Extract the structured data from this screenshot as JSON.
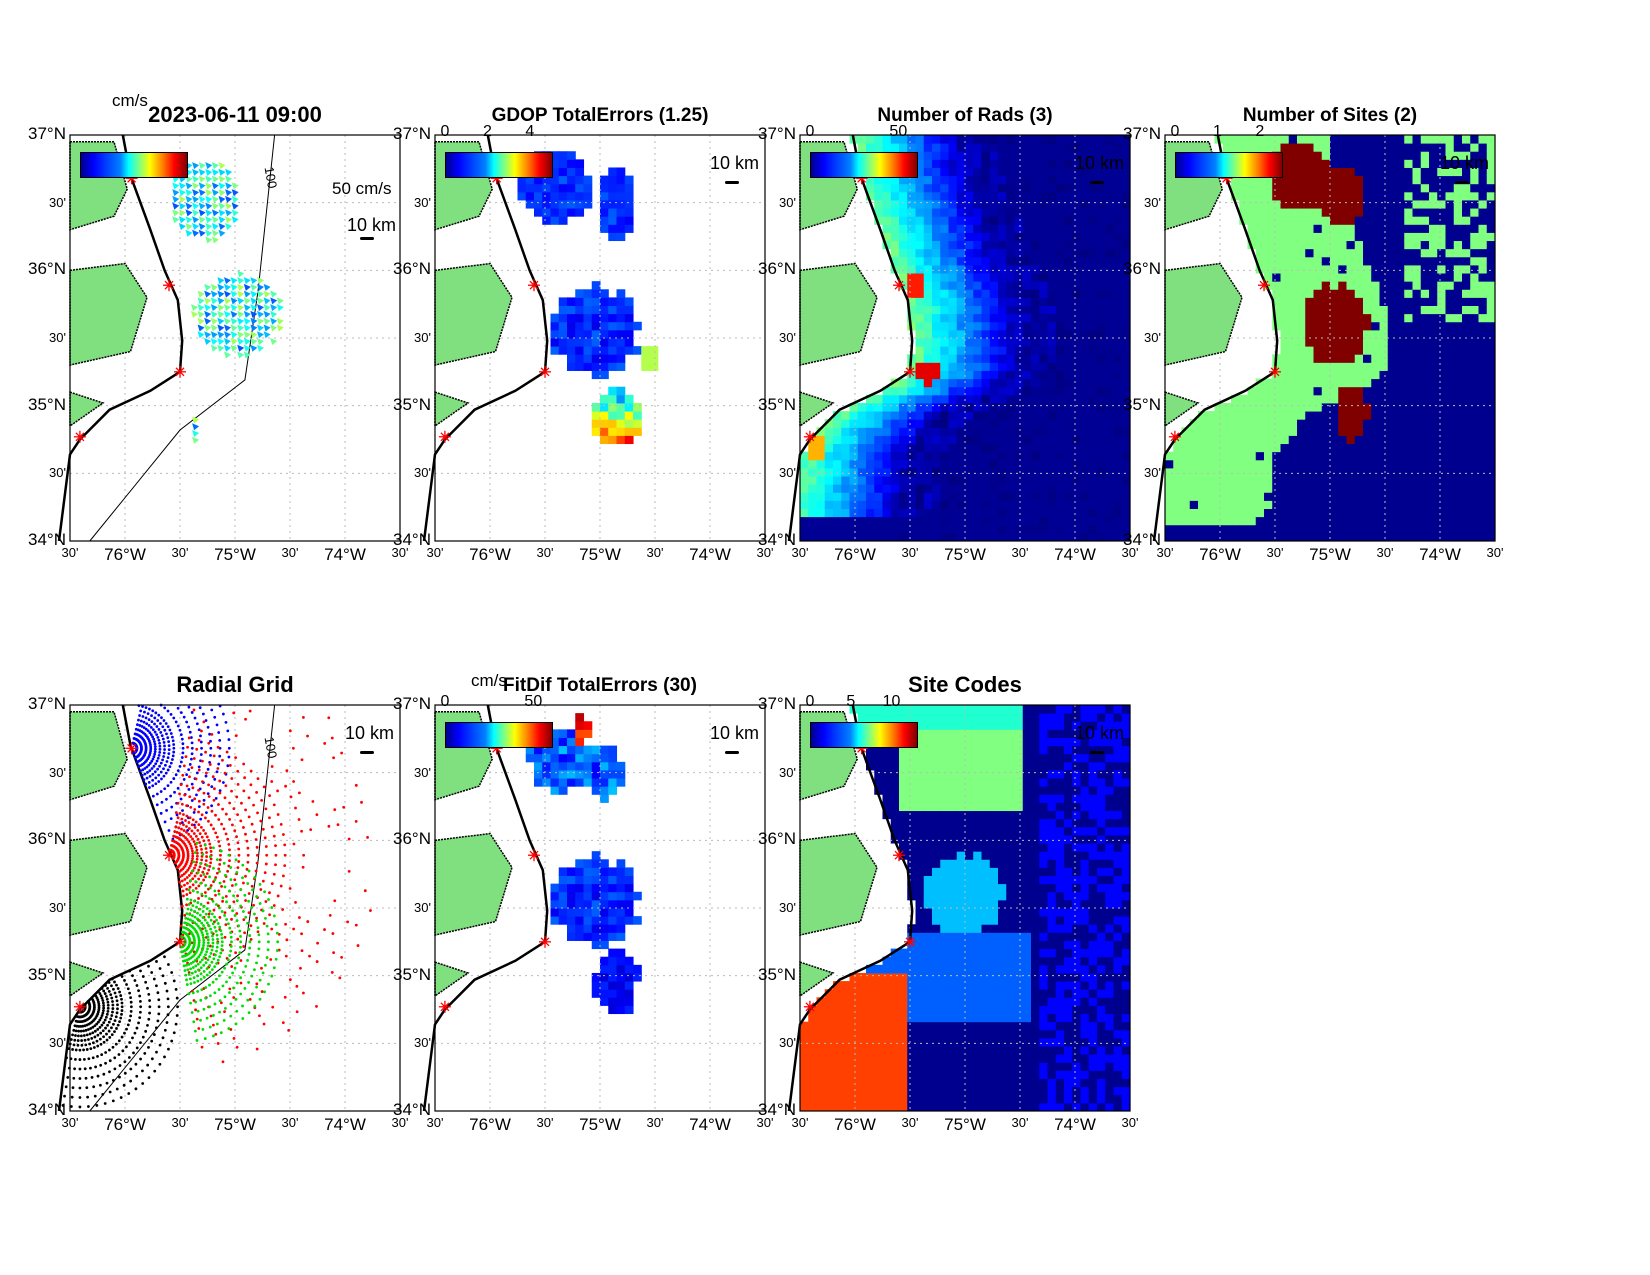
{
  "chart_data": {
    "type": "heatmap",
    "title": "2023-06-11 09:00",
    "axes": {
      "lat_ticks": [
        "37°N",
        "30'",
        "36°N",
        "30'",
        "35°N",
        "30'",
        "34°N"
      ],
      "lon_ticks": [
        "30'",
        "76°W",
        "30'",
        "75°W",
        "30'",
        "74°W",
        "30'"
      ],
      "lat_range": [
        34,
        37
      ],
      "lon_range": [
        -76.5,
        -73.5
      ]
    },
    "sites": [
      [
        -75.94,
        36.68
      ],
      [
        -75.6,
        35.89
      ],
      [
        -75.5,
        35.25
      ],
      [
        -76.41,
        34.77
      ]
    ],
    "panels": [
      {
        "title": "2023-06-11 09:00",
        "kind": "vectors",
        "colorbar_ticks": [],
        "unit": "cm/s",
        "scale_label": "10 km",
        "ref_vector": "50 cm/s",
        "contour_label": "100"
      },
      {
        "title": "GDOP TotalErrors (1.25)",
        "kind": "gdop",
        "colorbar_ticks": [
          "0",
          "2",
          "4"
        ],
        "scale_label": "10 km"
      },
      {
        "title": "Number of Rads (3)",
        "kind": "nrads",
        "colorbar_ticks": [
          "0",
          "50"
        ],
        "scale_label": "10 km"
      },
      {
        "title": "Number of Sites (2)",
        "kind": "nsites",
        "colorbar_ticks": [
          "0",
          "1",
          "2"
        ],
        "scale_label": "10 km"
      },
      {
        "title": "Radial Grid",
        "kind": "radial",
        "colorbar_ticks": [],
        "scale_label": "10 km",
        "contour_label": "100"
      },
      {
        "title": "FitDif TotalErrors (30)",
        "kind": "fitdif",
        "colorbar_ticks": [
          "0",
          "50"
        ],
        "unit": "cm/s",
        "scale_label": "10 km"
      },
      {
        "title": "Site Codes",
        "kind": "sitecodes",
        "colorbar_ticks": [
          "0",
          "5",
          "10"
        ],
        "scale_label": "10 km"
      }
    ]
  }
}
